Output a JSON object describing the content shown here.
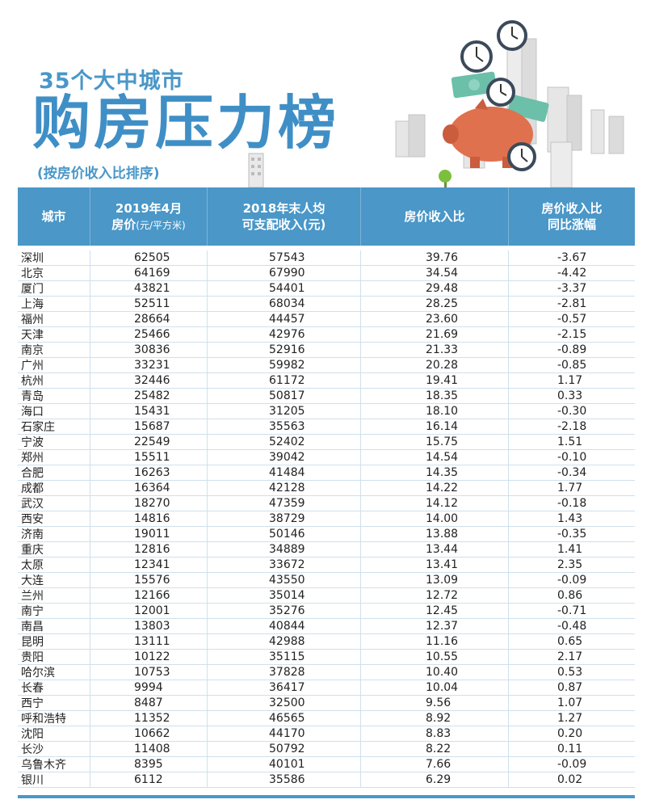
{
  "header": {
    "subtitle": "35个大中城市",
    "title": "购房压力榜",
    "note": "(按房价收入比排序)"
  },
  "table": {
    "columns": [
      {
        "line1": "城市",
        "line2": "",
        "unit": ""
      },
      {
        "line1": "2019年4月",
        "line2": "房价",
        "unit": "(元/平方米)"
      },
      {
        "line1": "2018年末人均",
        "line2": "可支配收入(元)",
        "unit": ""
      },
      {
        "line1": "房价收入比",
        "line2": "",
        "unit": ""
      },
      {
        "line1": "房价收入比",
        "line2": "同比涨幅",
        "unit": ""
      }
    ],
    "rows": [
      [
        "深圳",
        "62505",
        "57543",
        "39.76",
        "-3.67"
      ],
      [
        "北京",
        "64169",
        "67990",
        "34.54",
        "-4.42"
      ],
      [
        "厦门",
        "43821",
        "54401",
        "29.48",
        "-3.37"
      ],
      [
        "上海",
        "52511",
        "68034",
        "28.25",
        "-2.81"
      ],
      [
        "福州",
        "28664",
        "44457",
        "23.60",
        "-0.57"
      ],
      [
        "天津",
        "25466",
        "42976",
        "21.69",
        "-2.15"
      ],
      [
        "南京",
        "30836",
        "52916",
        "21.33",
        "-0.89"
      ],
      [
        "广州",
        "33231",
        "59982",
        "20.28",
        "-0.85"
      ],
      [
        "杭州",
        "32446",
        "61172",
        "19.41",
        "1.17"
      ],
      [
        "青岛",
        "25482",
        "50817",
        "18.35",
        "0.33"
      ],
      [
        "海口",
        "15431",
        "31205",
        "18.10",
        "-0.30"
      ],
      [
        "石家庄",
        "15687",
        "35563",
        "16.14",
        "-2.18"
      ],
      [
        "宁波",
        "22549",
        "52402",
        "15.75",
        "1.51"
      ],
      [
        "郑州",
        "15511",
        "39042",
        "14.54",
        "-0.10"
      ],
      [
        "合肥",
        "16263",
        "41484",
        "14.35",
        "-0.34"
      ],
      [
        "成都",
        "16364",
        "42128",
        "14.22",
        "1.77"
      ],
      [
        "武汉",
        "18270",
        "47359",
        "14.12",
        "-0.18"
      ],
      [
        "西安",
        "14816",
        "38729",
        "14.00",
        "1.43"
      ],
      [
        "济南",
        "19011",
        "50146",
        "13.88",
        "-0.35"
      ],
      [
        "重庆",
        "12816",
        "34889",
        "13.44",
        "1.41"
      ],
      [
        "太原",
        "12341",
        "33672",
        "13.41",
        "2.35"
      ],
      [
        "大连",
        "15576",
        "43550",
        "13.09",
        "-0.09"
      ],
      [
        "兰州",
        "12166",
        "35014",
        "12.72",
        "0.86"
      ],
      [
        "南宁",
        "12001",
        "35276",
        "12.45",
        "-0.71"
      ],
      [
        "南昌",
        "13803",
        "40844",
        "12.37",
        "-0.48"
      ],
      [
        "昆明",
        "13111",
        "42988",
        "11.16",
        "0.65"
      ],
      [
        "贵阳",
        "10122",
        "35115",
        "10.55",
        "2.17"
      ],
      [
        "哈尔滨",
        "10753",
        "37828",
        "10.40",
        "0.53"
      ],
      [
        "长春",
        "9994",
        "36417",
        "10.04",
        "0.87"
      ],
      [
        "西宁",
        "8487",
        "32500",
        "9.56",
        "1.07"
      ],
      [
        "呼和浩特",
        "11352",
        "46565",
        "8.92",
        "1.27"
      ],
      [
        "沈阳",
        "10662",
        "44170",
        "8.83",
        "0.20"
      ],
      [
        "长沙",
        "11408",
        "50792",
        "8.22",
        "0.11"
      ],
      [
        "乌鲁木齐",
        "8395",
        "40101",
        "7.66",
        "-0.09"
      ],
      [
        "银川",
        "6112",
        "35586",
        "6.29",
        "0.02"
      ]
    ]
  },
  "colors": {
    "accent": "#4a97c8",
    "piggy": "#e0714e",
    "money": "#6cbfa8"
  },
  "illustration": {
    "icons": [
      "piggy-bank-icon",
      "clock-icon",
      "money-bill-icon",
      "building-icon",
      "tree-icon"
    ]
  }
}
